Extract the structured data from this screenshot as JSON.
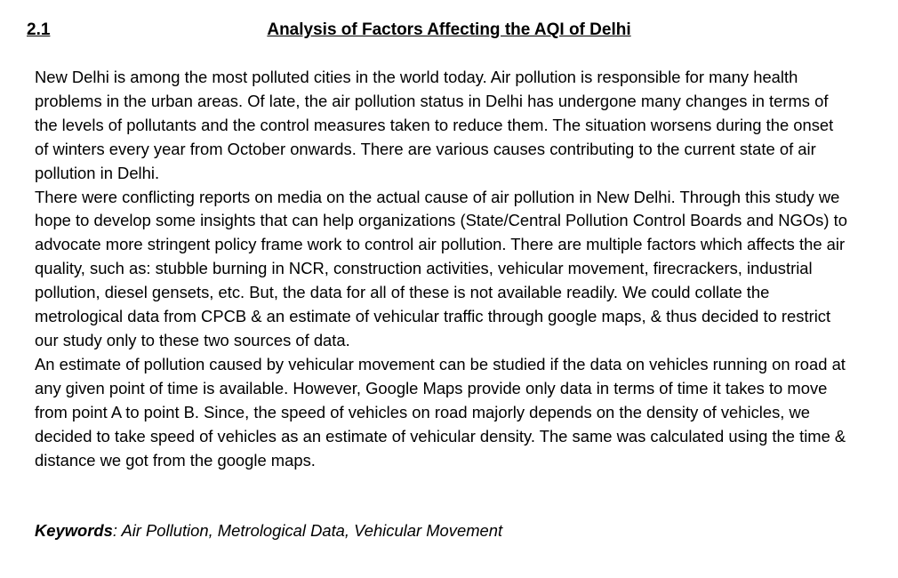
{
  "section": {
    "number": "2.1",
    "title": "Analysis of Factors Affecting the AQI of Delhi"
  },
  "paragraphs": [
    "New Delhi is among the most polluted cities in the world today. Air pollution is responsible for many health problems in the urban areas. Of late, the air pollution status in Delhi has undergone many changes in terms of the levels of pollutants and the control measures taken to reduce them. The situation worsens during the onset of winters every year from October onwards. There are various causes contributing to the current state of air pollution in Delhi.",
    "There were conflicting reports on media on the actual cause of air pollution in New Delhi. Through this study we hope to develop some insights that can help organizations (State/Central Pollution Control Boards and NGOs) to advocate more stringent policy frame work to control air pollution. There are multiple factors which affects the air quality, such as: stubble burning in NCR, construction activities, vehicular movement, firecrackers, industrial pollution, diesel gensets, etc. But, the data for all of these is not available readily. We could collate the metrological data from CPCB & an estimate of vehicular traffic through google maps, & thus decided to restrict our study only to these two sources of data.",
    "An estimate of pollution caused by vehicular movement can be studied if the data on vehicles running on road at any given point of time is available. However, Google Maps provide only data in terms of time it takes to move from point A to point B. Since, the speed of vehicles on road majorly depends on the density of vehicles, we decided to take speed of vehicles as an estimate of vehicular density. The same was calculated using the time & distance we got from the google maps."
  ],
  "keywords": {
    "label": "Keywords",
    "separator": ":",
    "text": " Air Pollution, Metrological Data, Vehicular Movement"
  }
}
